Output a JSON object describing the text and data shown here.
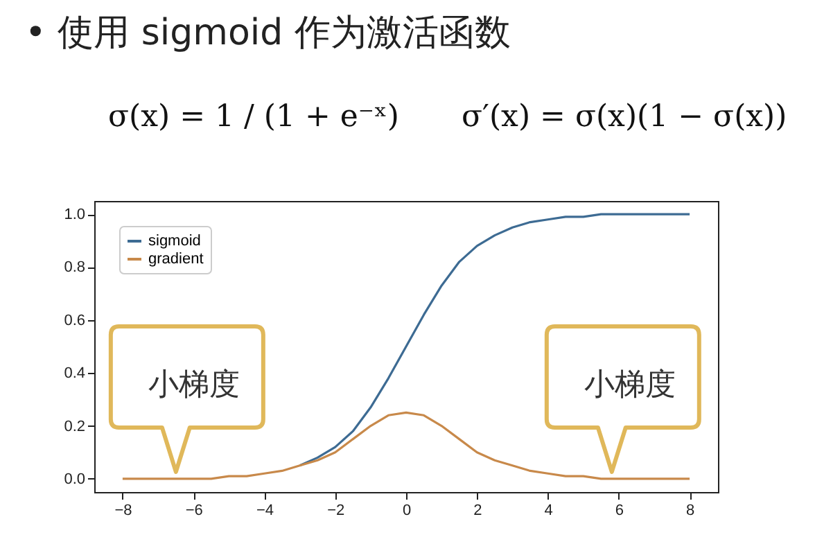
{
  "chart_data": {
    "type": "line",
    "title": "• 使用 sigmoid 作为激活函数",
    "annotations": [
      "σ(x) = 1 / (1 + e⁻ˣ)",
      "σ′(x) = σ(x)(1 − σ(x))",
      {
        "text": "小梯度",
        "x": -6.3,
        "y": 0
      },
      {
        "text": "小梯度",
        "x": 6,
        "y": 0
      }
    ],
    "x": [
      -8,
      -7.5,
      -7,
      -6.5,
      -6,
      -5.5,
      -5,
      -4.5,
      -4,
      -3.5,
      -3,
      -2.5,
      -2,
      -1.5,
      -1,
      -0.5,
      0,
      0.5,
      1,
      1.5,
      2,
      2.5,
      3,
      3.5,
      4,
      4.5,
      5,
      5.5,
      6,
      6.5,
      7,
      7.5,
      8
    ],
    "series": [
      {
        "name": "sigmoid",
        "color": "#3d6b93",
        "values": [
          null,
          null,
          null,
          null,
          null,
          null,
          null,
          null,
          null,
          null,
          0.05,
          0.08,
          0.12,
          0.18,
          0.27,
          0.38,
          0.5,
          0.62,
          0.73,
          0.82,
          0.88,
          0.92,
          0.95,
          0.97,
          0.98,
          0.99,
          0.99,
          1,
          1,
          1,
          1,
          1,
          1
        ]
      },
      {
        "name": "gradient",
        "color": "#c8894a",
        "values": [
          0,
          0,
          0,
          0,
          0,
          0,
          0.01,
          0.01,
          0.02,
          0.03,
          0.05,
          0.07,
          0.1,
          0.15,
          0.2,
          0.24,
          0.25,
          0.24,
          0.2,
          0.15,
          0.1,
          0.07,
          0.05,
          0.03,
          0.02,
          0.01,
          0.01,
          0,
          0,
          0,
          0,
          0,
          0
        ]
      }
    ],
    "xlim": [
      -8.8,
      8.8
    ],
    "ylim": [
      -0.05,
      1.05
    ],
    "xticks": [
      {
        "value": -8,
        "label": "−8"
      },
      {
        "value": -6,
        "label": "−6"
      },
      {
        "value": -4,
        "label": "−4"
      },
      {
        "value": -2,
        "label": "−2"
      },
      0,
      2,
      4,
      6,
      8
    ],
    "yticks": [
      {
        "value": 0,
        "label": "0.0"
      },
      {
        "value": 0.2,
        "label": "0.2"
      },
      {
        "value": 0.4,
        "label": "0.4"
      },
      {
        "value": 0.6,
        "label": "0.6"
      },
      {
        "value": 0.8,
        "label": "0.8"
      },
      {
        "value": 1,
        "label": "1.0"
      }
    ],
    "legend": "top left",
    "grid": false,
    "marker": "none",
    "line_style": "solid"
  }
}
